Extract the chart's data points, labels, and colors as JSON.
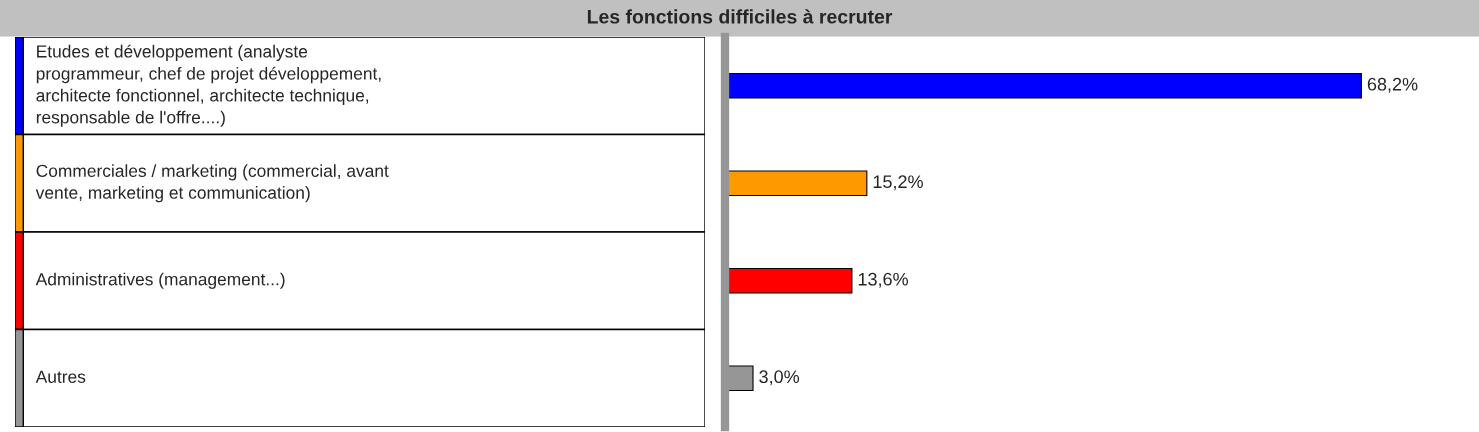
{
  "chart_data": {
    "type": "bar",
    "orientation": "horizontal",
    "title": "Les fonctions difficiles à recruter",
    "categories": [
      "Etudes et développement (analyste\nprogrammeur, chef de projet développement,\narchitecte fonctionnel, architecte technique,\nresponsable de l'offre....)",
      "Commerciales / marketing (commercial, avant\nvente, marketing et communication)",
      "Administratives (management...)",
      "Autres"
    ],
    "values": [
      68.2,
      15.2,
      13.6,
      3.0
    ],
    "colors": [
      "#0000ff",
      "#ff9900",
      "#ff0000",
      "#969696"
    ],
    "value_labels": [
      "68,2%",
      "15,2%",
      "13,6%",
      "3,0%"
    ]
  }
}
